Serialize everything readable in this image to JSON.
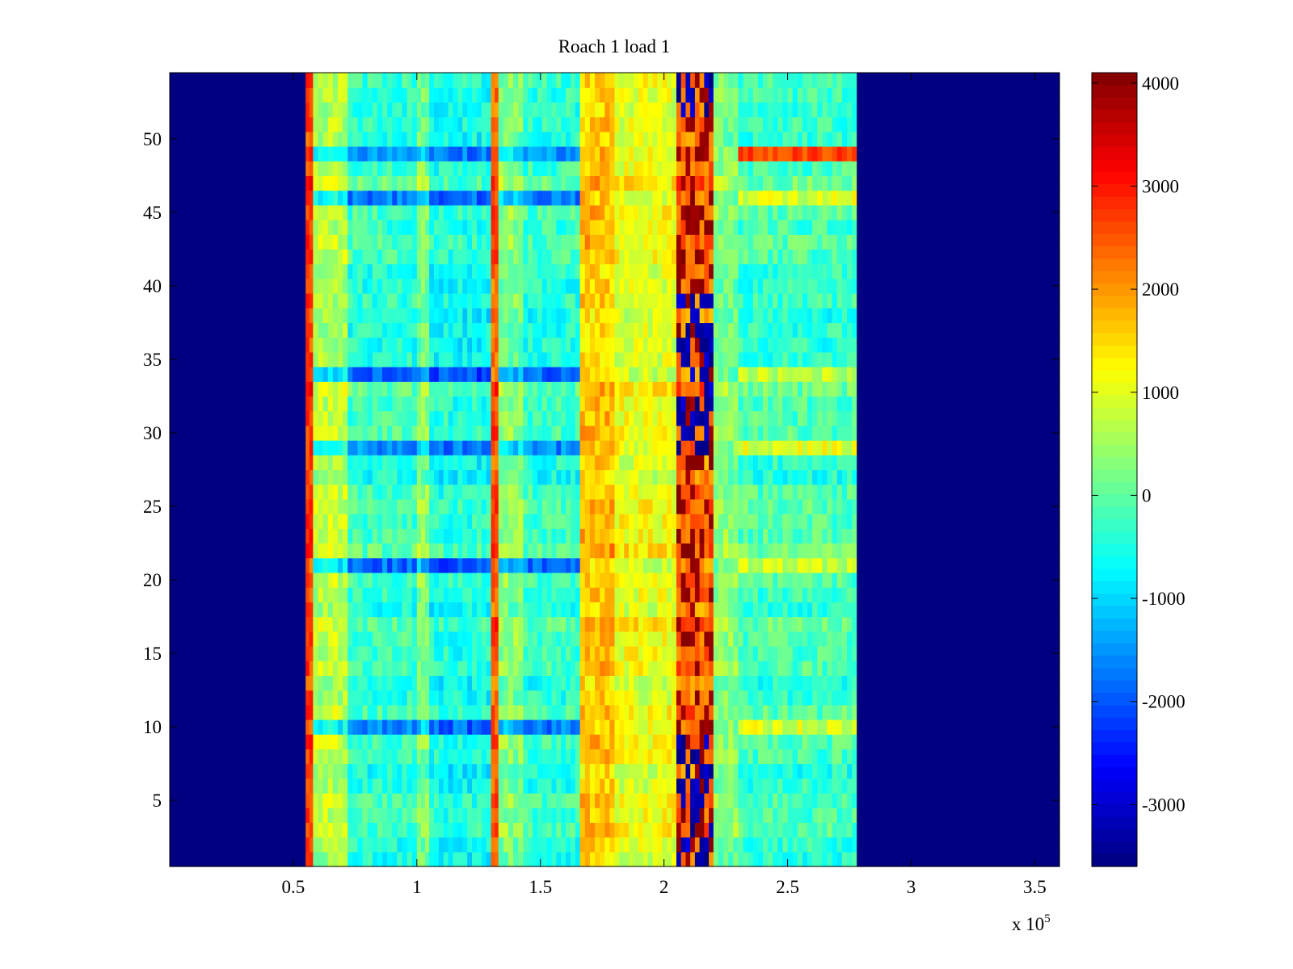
{
  "chart_data": {
    "type": "heatmap",
    "title": "Roach 1 load 1",
    "xlabel": "",
    "ylabel": "",
    "x_multiplier": "x 10",
    "x_multiplier_exponent": "5",
    "xlim": [
      0,
      360000
    ],
    "ylim": [
      0.5,
      54.5
    ],
    "x_ticks": [
      0.5,
      1,
      1.5,
      2,
      2.5,
      3,
      3.5
    ],
    "x_tick_labels": [
      "0.5",
      "1",
      "1.5",
      "2",
      "2.5",
      "3",
      "3.5"
    ],
    "y_ticks": [
      5,
      10,
      15,
      20,
      25,
      30,
      35,
      40,
      45,
      50
    ],
    "y_tick_labels": [
      "5",
      "10",
      "15",
      "20",
      "25",
      "30",
      "35",
      "40",
      "45",
      "50"
    ],
    "colormap": "jet",
    "clim": [
      -3600,
      4100
    ],
    "colorbar_ticks": [
      4000,
      3000,
      2000,
      1000,
      0,
      -1000,
      -2000,
      -3000
    ],
    "colorbar_tick_labels": [
      "4000",
      "3000",
      "2000",
      "1000",
      "0",
      "-1000",
      "-2000",
      "-3000"
    ],
    "rows": 54,
    "bands": [
      {
        "x_start": 0,
        "x_end": 55000,
        "value": -3600
      },
      {
        "x_start": 55000,
        "x_end": 58000,
        "value": 2700
      },
      {
        "x_start": 58000,
        "x_end": 72000,
        "value": 700
      },
      {
        "x_start": 72000,
        "x_end": 100000,
        "value": -300
      },
      {
        "x_start": 100000,
        "x_end": 105000,
        "value": 300
      },
      {
        "x_start": 105000,
        "x_end": 130000,
        "value": -500
      },
      {
        "x_start": 130000,
        "x_end": 133000,
        "value": 2500
      },
      {
        "x_start": 133000,
        "x_end": 143000,
        "value": 300
      },
      {
        "x_start": 143000,
        "x_end": 166000,
        "value": -300
      },
      {
        "x_start": 166000,
        "x_end": 180000,
        "value": 1700
      },
      {
        "x_start": 180000,
        "x_end": 205000,
        "value": 1100
      },
      {
        "x_start": 205000,
        "x_end": 220000,
        "value": 2300
      },
      {
        "x_start": 220000,
        "x_end": 230000,
        "value": 300
      },
      {
        "x_start": 230000,
        "x_end": 278000,
        "value": -200
      },
      {
        "x_start": 278000,
        "x_end": 360000,
        "value": -3600
      }
    ],
    "low_rows": [
      10,
      21,
      29,
      34,
      46,
      49
    ],
    "dark_column_rows": [
      1,
      2,
      3,
      4,
      5,
      6,
      7,
      8,
      9,
      29,
      30,
      31,
      32,
      33,
      34,
      35,
      36,
      37,
      38,
      39,
      52,
      53,
      54
    ],
    "hot_stripe_rows": [
      49
    ]
  }
}
